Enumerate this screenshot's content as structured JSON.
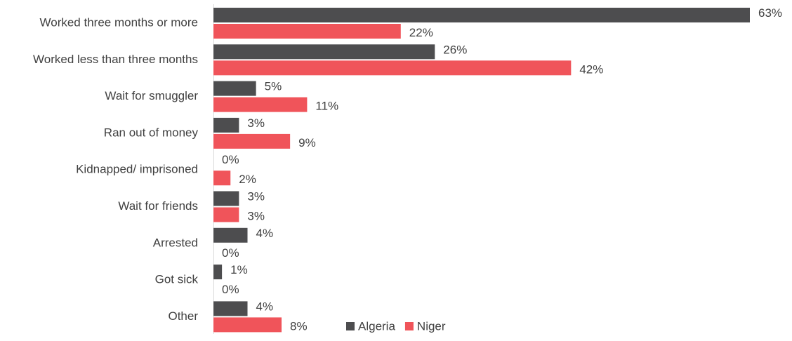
{
  "chart_data": {
    "type": "bar",
    "orientation": "horizontal",
    "categories": [
      "Worked three months or more",
      "Worked less than three months",
      "Wait for smuggler",
      "Ran out of money",
      "Kidnapped/ imprisoned",
      "Wait for friends",
      "Arrested",
      "Got sick",
      "Other"
    ],
    "series": [
      {
        "name": "Algeria",
        "color": "#4d4d4f",
        "values": [
          63,
          26,
          5,
          3,
          0,
          3,
          4,
          1,
          4
        ],
        "value_labels": [
          "63%",
          "26%",
          "5%",
          "3%",
          "0%",
          "3%",
          "4%",
          "1%",
          "4%"
        ]
      },
      {
        "name": "Niger",
        "color": "#f0545a",
        "values": [
          22,
          42,
          11,
          9,
          2,
          3,
          0,
          0,
          8
        ],
        "value_labels": [
          "22%",
          "42%",
          "11%",
          "9%",
          "2%",
          "3%",
          "0%",
          "0%",
          "8%"
        ]
      }
    ],
    "legend": "bottom"
  }
}
